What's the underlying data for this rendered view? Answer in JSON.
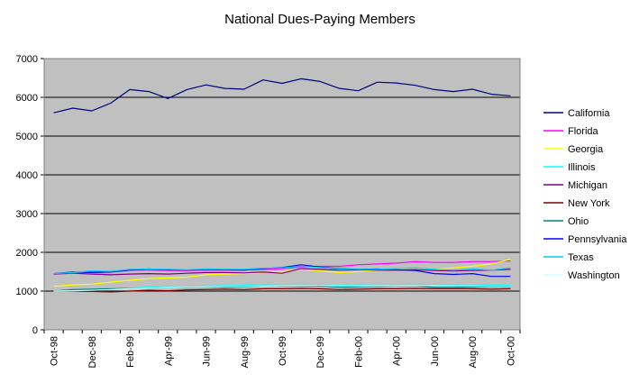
{
  "chart_data": {
    "type": "line",
    "title": "National Dues-Paying Members",
    "xlabel": "",
    "ylabel": "",
    "ylim": [
      0,
      7000
    ],
    "yticks": [
      0,
      1000,
      2000,
      3000,
      4000,
      5000,
      6000,
      7000
    ],
    "grid": true,
    "legend_position": "right",
    "plot_background": "#c0c0c0",
    "categories": [
      "Oct-98",
      "Nov-98",
      "Dec-98",
      "Jan-99",
      "Feb-99",
      "Mar-99",
      "Apr-99",
      "May-99",
      "Jun-99",
      "Jul-99",
      "Aug-99",
      "Sep-99",
      "Oct-99",
      "Nov-99",
      "Dec-99",
      "Jan-00",
      "Feb-00",
      "Mar-00",
      "Apr-00",
      "May-00",
      "Jun-00",
      "Jul-00",
      "Aug-00",
      "Sep-00",
      "Oct-00"
    ],
    "tick_labels": [
      "Oct-98",
      "",
      "Dec-98",
      "",
      "Feb-99",
      "",
      "Apr-99",
      "",
      "Jun-99",
      "",
      "Aug-99",
      "",
      "Oct-99",
      "",
      "Dec-99",
      "",
      "Feb-00",
      "",
      "Apr-00",
      "",
      "Jun-00",
      "",
      "Aug-00",
      "",
      "Oct-00"
    ],
    "series": [
      {
        "name": "California",
        "color": "#000080",
        "values": [
          5600,
          5720,
          5650,
          5850,
          6200,
          6150,
          5970,
          6200,
          6320,
          6230,
          6210,
          6450,
          6360,
          6480,
          6410,
          6230,
          6170,
          6390,
          6370,
          6310,
          6200,
          6150,
          6210,
          6080,
          6040
        ]
      },
      {
        "name": "Florida",
        "color": "#ff00ff",
        "values": [
          1450,
          1480,
          1500,
          1510,
          1540,
          1540,
          1530,
          1530,
          1540,
          1540,
          1550,
          1560,
          1580,
          1620,
          1640,
          1640,
          1680,
          1700,
          1720,
          1760,
          1740,
          1740,
          1760,
          1760,
          1780
        ]
      },
      {
        "name": "Georgia",
        "color": "#ffff00",
        "values": [
          1120,
          1160,
          1180,
          1230,
          1280,
          1320,
          1340,
          1360,
          1420,
          1440,
          1450,
          1480,
          1490,
          1560,
          1520,
          1480,
          1500,
          1540,
          1580,
          1600,
          1560,
          1600,
          1640,
          1700,
          1820
        ]
      },
      {
        "name": "Illinois",
        "color": "#00ffff",
        "values": [
          1000,
          1030,
          1040,
          1060,
          1080,
          1100,
          1110,
          1120,
          1130,
          1140,
          1150,
          1160,
          1170,
          1180,
          1170,
          1150,
          1160,
          1170,
          1170,
          1180,
          1170,
          1160,
          1160,
          1150,
          1150
        ]
      },
      {
        "name": "Michigan",
        "color": "#800080",
        "values": [
          1440,
          1460,
          1440,
          1420,
          1440,
          1450,
          1440,
          1460,
          1480,
          1480,
          1470,
          1490,
          1460,
          1580,
          1560,
          1540,
          1550,
          1540,
          1540,
          1550,
          1530,
          1520,
          1530,
          1540,
          1560
        ]
      },
      {
        "name": "New York",
        "color": "#800000",
        "values": [
          1000,
          1000,
          990,
          980,
          1000,
          1020,
          1010,
          1030,
          1040,
          1050,
          1040,
          1060,
          1060,
          1070,
          1060,
          1040,
          1050,
          1060,
          1060,
          1070,
          1060,
          1060,
          1060,
          1050,
          1060
        ]
      },
      {
        "name": "Ohio",
        "color": "#008080",
        "values": [
          1000,
          1040,
          1050,
          1060,
          1070,
          1080,
          1090,
          1090,
          1100,
          1100,
          1110,
          1130,
          1130,
          1140,
          1130,
          1100,
          1110,
          1120,
          1130,
          1140,
          1100,
          1100,
          1110,
          1110,
          1110
        ]
      },
      {
        "name": "Pennsylvania",
        "color": "#0000ff",
        "values": [
          1450,
          1490,
          1480,
          1490,
          1540,
          1570,
          1550,
          1540,
          1560,
          1550,
          1540,
          1580,
          1610,
          1680,
          1620,
          1580,
          1560,
          1570,
          1550,
          1530,
          1450,
          1430,
          1450,
          1380,
          1380
        ]
      },
      {
        "name": "Texas",
        "color": "#00ccff",
        "values": [
          1450,
          1480,
          1520,
          1510,
          1560,
          1570,
          1560,
          1550,
          1570,
          1560,
          1560,
          1590,
          1600,
          1640,
          1610,
          1570,
          1560,
          1560,
          1580,
          1600,
          1560,
          1540,
          1570,
          1540,
          1600
        ]
      },
      {
        "name": "Washington",
        "color": "#ccffff",
        "values": [
          1000,
          1010,
          1020,
          1040,
          1060,
          1080,
          1090,
          1100,
          1110,
          1120,
          1120,
          1130,
          1140,
          1150,
          1150,
          1130,
          1130,
          1140,
          1140,
          1150,
          1140,
          1130,
          1130,
          1120,
          1120
        ]
      }
    ]
  }
}
